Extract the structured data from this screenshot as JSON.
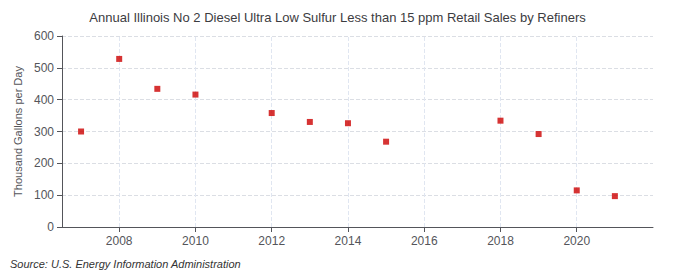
{
  "chart_data": {
    "type": "scatter",
    "title": "Annual Illinois No 2 Diesel Ultra Low Sulfur Less than 15 ppm Retail Sales by Refiners",
    "ylabel": "Thousand Gallons per Day",
    "annotation": "Source: U.S. Energy Information Administration",
    "x": [
      2007,
      2008,
      2009,
      2010,
      2012,
      2013,
      2014,
      2015,
      2018,
      2019,
      2020,
      2021
    ],
    "values": [
      300,
      528,
      434,
      416,
      358,
      330,
      326,
      268,
      334,
      292,
      115,
      97
    ],
    "color": "#cc0000",
    "marker": "square",
    "xlim": [
      2006.5,
      2022
    ],
    "xticks": [
      2008,
      2010,
      2012,
      2014,
      2016,
      2018,
      2020
    ],
    "ylim": [
      0,
      600
    ],
    "yticks": [
      0,
      100,
      200,
      300,
      400,
      500,
      600
    ],
    "grid": true
  }
}
